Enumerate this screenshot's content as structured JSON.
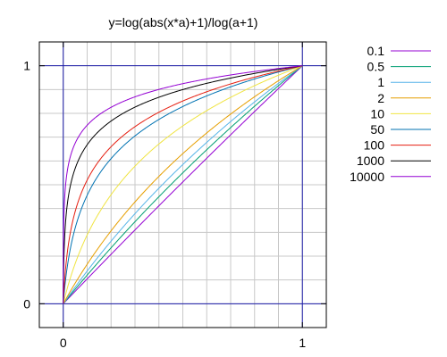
{
  "chart_data": {
    "type": "line",
    "title": "y=log(abs(x*a)+1)/log(a+1)",
    "xlabel": "",
    "ylabel": "",
    "xlim": [
      -0.1,
      1.1
    ],
    "ylim": [
      -0.1,
      1.1
    ],
    "x_ticks": [
      {
        "value": 0,
        "label": "0"
      },
      {
        "value": 1,
        "label": "1"
      }
    ],
    "y_ticks": [
      {
        "value": 0,
        "label": "0"
      },
      {
        "value": 1,
        "label": "1"
      }
    ],
    "grid": true,
    "grid_step": 0.1,
    "highlight_lines": [
      0,
      1
    ],
    "highlight_color": "#1a1aa8",
    "legend_position": "outside-right",
    "function": "log(abs(x*a)+1)/log(a+1)",
    "x_domain": [
      0,
      1
    ],
    "series": [
      {
        "name": "0.1",
        "a": 0.1,
        "color": "#9400d3"
      },
      {
        "name": "0.5",
        "a": 0.5,
        "color": "#009e73"
      },
      {
        "name": "1",
        "a": 1,
        "color": "#56b4e9"
      },
      {
        "name": "2",
        "a": 2,
        "color": "#e69f00"
      },
      {
        "name": "10",
        "a": 10,
        "color": "#f0e442"
      },
      {
        "name": "50",
        "a": 50,
        "color": "#0072b2"
      },
      {
        "name": "100",
        "a": 100,
        "color": "#e51e10"
      },
      {
        "name": "1000",
        "a": 1000,
        "color": "#000000"
      },
      {
        "name": "10000",
        "a": 10000,
        "color": "#9400d3"
      }
    ]
  }
}
